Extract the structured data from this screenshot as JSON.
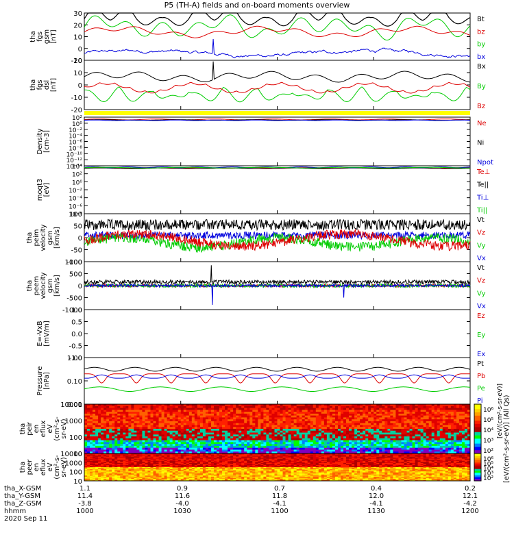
{
  "title": "P5 (TH-A) fields and on-board moments overview",
  "chart_data": {
    "type": "line",
    "date": "2020 Sep 11",
    "time_range_hhmm": [
      "1000",
      "1200"
    ],
    "panels": [
      {
        "ylabel": [
          "tha",
          "fgs",
          "gsm",
          "[nT]"
        ],
        "yscale": "linear",
        "ylim": [
          -10,
          30
        ],
        "ytick_labels": [
          "30",
          "20",
          "10",
          "0",
          "-10"
        ],
        "legend": [
          {
            "name": "Bt",
            "color": "#000000"
          },
          {
            "name": "bz",
            "color": "#dd0000"
          },
          {
            "name": "by",
            "color": "#00cc00"
          },
          {
            "name": "bx",
            "color": "#0000dd"
          }
        ]
      },
      {
        "ylabel": [
          "tha",
          "fgs",
          "dsl",
          "[nT]"
        ],
        "yscale": "linear",
        "ylim": [
          -25,
          20
        ],
        "ytick_labels": [
          "20",
          "10",
          "0",
          "-10",
          "-20"
        ],
        "legend": [
          {
            "name": "Bx",
            "color": "#000000"
          },
          {
            "name": "By",
            "color": "#00cc00"
          },
          {
            "name": "Bz",
            "color": "#dd0000"
          }
        ]
      },
      {
        "ylabel": [
          "Density",
          "[cm-3]"
        ],
        "yscale": "log",
        "ylim": [
          1e-15,
          100
        ],
        "ytick_labels": [
          "10²",
          "10⁰",
          "10⁻²",
          "10⁻⁴",
          "10⁻⁶",
          "10⁻⁸",
          "10⁻¹⁰",
          "10⁻¹²",
          "10⁻¹⁴"
        ],
        "legend": [
          {
            "name": "Ne",
            "color": "#dd0000"
          },
          {
            "name": "Ni",
            "color": "#000000"
          },
          {
            "name": "Npot",
            "color": "#0000dd"
          }
        ]
      },
      {
        "ylabel": [
          "moqt3",
          "[eV]"
        ],
        "yscale": "log",
        "ylim": [
          1e-09,
          10000
        ],
        "ytick_labels": [
          "10⁴",
          "10²",
          "10⁰",
          "10⁻²",
          "10⁻⁴",
          "10⁻⁶",
          "10⁻⁸"
        ],
        "legend": [
          {
            "name": "Te⊥",
            "color": "#dd0000"
          },
          {
            "name": "Te||",
            "color": "#000000"
          },
          {
            "name": "Ti⊥",
            "color": "#0000dd"
          },
          {
            "name": "Ti||",
            "color": "#00cc00"
          }
        ]
      },
      {
        "ylabel": [
          "tha",
          "peim",
          "velocity",
          "gsm",
          "[km/s]"
        ],
        "yscale": "linear",
        "ylim": [
          -100,
          100
        ],
        "ytick_labels": [
          "100",
          "50",
          "0",
          "-50",
          "-100"
        ],
        "legend": [
          {
            "name": "Vt",
            "color": "#000000"
          },
          {
            "name": "Vz",
            "color": "#dd0000"
          },
          {
            "name": "Vy",
            "color": "#00cc00"
          },
          {
            "name": "Vx",
            "color": "#0000dd"
          }
        ]
      },
      {
        "ylabel": [
          "tha",
          "peem",
          "velocity",
          "gsm",
          "[km/s]"
        ],
        "yscale": "linear",
        "ylim": [
          -1000,
          1000
        ],
        "ytick_labels": [
          "1000",
          "500",
          "0",
          "-500",
          "-1000"
        ],
        "legend": [
          {
            "name": "Vt",
            "color": "#000000"
          },
          {
            "name": "Vz",
            "color": "#dd0000"
          },
          {
            "name": "Vy",
            "color": "#00cc00"
          },
          {
            "name": "Vx",
            "color": "#0000dd"
          }
        ]
      },
      {
        "ylabel": [
          "E=-VxB",
          "[mV/m]"
        ],
        "yscale": "linear",
        "ylim": [
          -1,
          1
        ],
        "ytick_labels": [
          "1.0",
          "0.5",
          "0.0",
          "-0.5",
          "-1.0"
        ],
        "legend": [
          {
            "name": "Ez",
            "color": "#dd0000"
          },
          {
            "name": "Ey",
            "color": "#00cc00"
          },
          {
            "name": "Ex",
            "color": "#0000dd"
          }
        ]
      },
      {
        "ylabel": [
          "Pressure",
          "[nPa]"
        ],
        "yscale": "log",
        "ylim": [
          0.01,
          1
        ],
        "ytick_labels": [
          "1.00",
          "0.10",
          "0.01"
        ],
        "legend": [
          {
            "name": "Pt",
            "color": "#000000"
          },
          {
            "name": "Pb",
            "color": "#dd0000"
          },
          {
            "name": "Pe",
            "color": "#00cc00"
          },
          {
            "name": "Pi",
            "color": "#0000dd"
          }
        ]
      },
      {
        "type": "heatmap",
        "ylabel": [
          "tha",
          "peir",
          "en",
          "eflux",
          "eV",
          "(cm²-s-",
          "sr-eV)"
        ],
        "yscale": "log",
        "ylim": [
          5,
          20000
        ],
        "ytick_labels": [
          "10000",
          "1000",
          "100",
          "10"
        ]
      },
      {
        "type": "heatmap",
        "ylabel": [
          "tha",
          "peer",
          "en",
          "eflux",
          "eV",
          "(cm²-s-",
          "sr-eV)"
        ],
        "yscale": "log",
        "ylim": [
          5,
          20000
        ],
        "ytick_labels": [
          "10000",
          "1000",
          "100",
          "10"
        ]
      }
    ],
    "colorbars": [
      {
        "ticks": [
          "10⁶",
          "10⁵",
          "10⁴",
          "10³",
          "10²"
        ]
      },
      {
        "ticks": [
          "10⁶",
          "10⁵",
          "10⁴",
          "10³",
          "10²"
        ]
      }
    ],
    "colorbar_label": "[eV/(cm²-s-sr-eV)] (All Qs)",
    "colorbar_label_2": "[eV/(cm²-s-sr-eV)]",
    "orbit_rows": [
      {
        "name": "tha_X-GSM",
        "values": [
          "1.1",
          "0.9",
          "0.7",
          "0.4",
          "0.2"
        ]
      },
      {
        "name": "tha_Y-GSM",
        "values": [
          "11.4",
          "11.6",
          "11.8",
          "12.0",
          "12.1"
        ]
      },
      {
        "name": "tha_Z-GSM",
        "values": [
          "-3.8",
          "-4.0",
          "-4.1",
          "-4.1",
          "-4.2"
        ]
      },
      {
        "name": "hhmm",
        "values": [
          "1000",
          "1030",
          "1100",
          "1130",
          "1200"
        ]
      }
    ]
  }
}
